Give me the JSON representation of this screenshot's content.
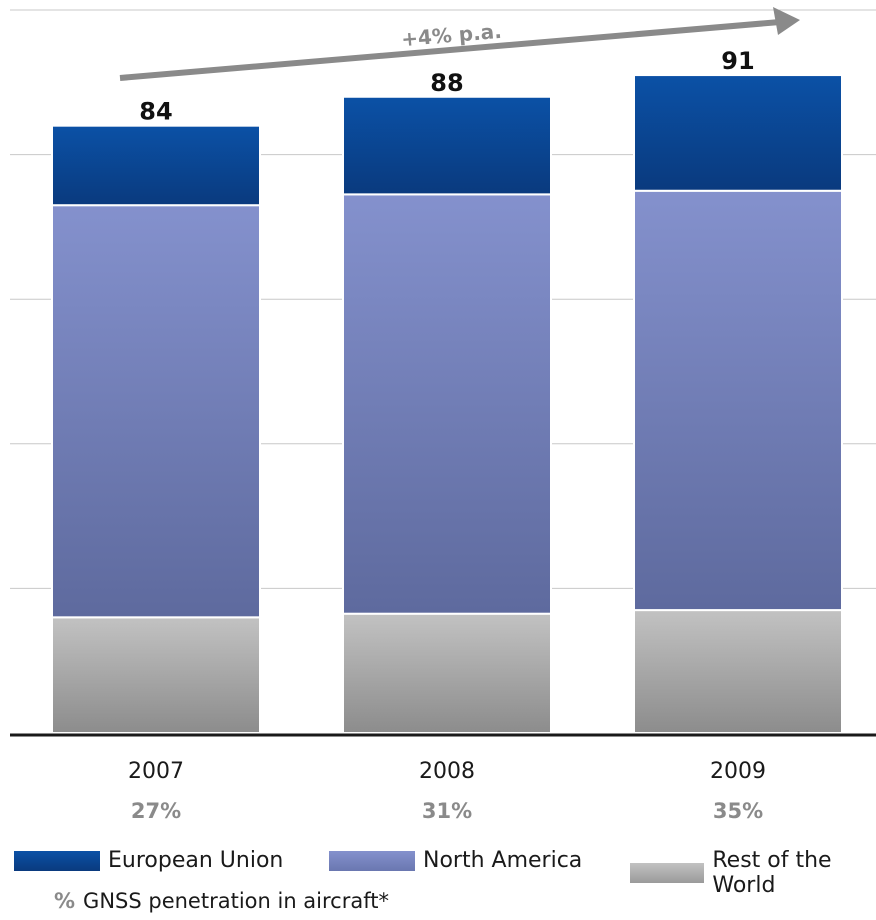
{
  "chart_data": {
    "type": "bar",
    "stacked": true,
    "categories": [
      "2007",
      "2008",
      "2009"
    ],
    "totals": [
      84,
      88,
      91
    ],
    "series": [
      {
        "name": "Rest of the World",
        "values": [
          16,
          16.5,
          17
        ],
        "color": "#b4b4b4"
      },
      {
        "name": "North America",
        "values": [
          57,
          58,
          58
        ],
        "color": "#7f8cc5"
      },
      {
        "name": "European Union",
        "values": [
          11,
          13.5,
          16
        ],
        "color": "#0d4d9e"
      }
    ],
    "penetration": [
      "27%",
      "31%",
      "35%"
    ],
    "ylim": [
      0,
      100
    ],
    "grid": true,
    "growth_annotation": "+4% p.a.",
    "legend_position": "bottom"
  },
  "footnote": {
    "symbol": "%",
    "text": "GNSS penetration in aircraft*"
  }
}
